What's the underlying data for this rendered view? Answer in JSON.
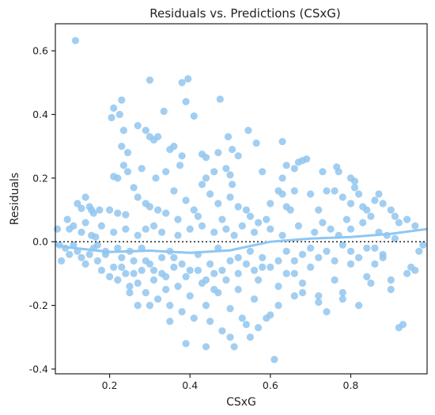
{
  "chart_data": {
    "type": "scatter",
    "title": "Residuals vs. Predictions (CSxG)",
    "xlabel": "CSxG",
    "ylabel": "Residuals",
    "xlim": [
      0.065,
      0.99
    ],
    "ylim": [
      -0.415,
      0.685
    ],
    "xticks": [
      0.2,
      0.4,
      0.6,
      0.8
    ],
    "yticks": [
      -0.4,
      -0.2,
      0.0,
      0.2,
      0.4,
      0.6
    ],
    "grid": false,
    "legend": "none",
    "reference_line": {
      "y": 0.0,
      "style": "dotted",
      "color": "#222222"
    },
    "point_color": "#92c5ef",
    "trend_color": "#8ec7f2",
    "trend": {
      "x": [
        0.065,
        0.1,
        0.2,
        0.3,
        0.4,
        0.5,
        0.6,
        0.7,
        0.8,
        0.9,
        0.99
      ],
      "y": [
        -0.01,
        -0.018,
        -0.032,
        -0.028,
        -0.035,
        -0.027,
        0.0,
        0.01,
        0.015,
        0.025,
        0.04
      ]
    },
    "points": [
      [
        0.115,
        0.632
      ],
      [
        0.3,
        0.508
      ],
      [
        0.395,
        0.512
      ],
      [
        0.38,
        0.5
      ],
      [
        0.475,
        0.448
      ],
      [
        0.39,
        0.44
      ],
      [
        0.21,
        0.42
      ],
      [
        0.23,
        0.445
      ],
      [
        0.225,
        0.4
      ],
      [
        0.205,
        0.39
      ],
      [
        0.335,
        0.41
      ],
      [
        0.41,
        0.395
      ],
      [
        0.27,
        0.365
      ],
      [
        0.235,
        0.35
      ],
      [
        0.29,
        0.35
      ],
      [
        0.545,
        0.35
      ],
      [
        0.495,
        0.33
      ],
      [
        0.3,
        0.33
      ],
      [
        0.31,
        0.32
      ],
      [
        0.32,
        0.33
      ],
      [
        0.23,
        0.3
      ],
      [
        0.36,
        0.3
      ],
      [
        0.35,
        0.29
      ],
      [
        0.47,
        0.28
      ],
      [
        0.505,
        0.29
      ],
      [
        0.565,
        0.31
      ],
      [
        0.63,
        0.315
      ],
      [
        0.245,
        0.28
      ],
      [
        0.38,
        0.27
      ],
      [
        0.43,
        0.275
      ],
      [
        0.44,
        0.265
      ],
      [
        0.52,
        0.27
      ],
      [
        0.235,
        0.24
      ],
      [
        0.245,
        0.22
      ],
      [
        0.22,
        0.2
      ],
      [
        0.21,
        0.205
      ],
      [
        0.28,
        0.23
      ],
      [
        0.315,
        0.2
      ],
      [
        0.34,
        0.22
      ],
      [
        0.375,
        0.24
      ],
      [
        0.43,
        0.18
      ],
      [
        0.44,
        0.2
      ],
      [
        0.46,
        0.22
      ],
      [
        0.49,
        0.23
      ],
      [
        0.5,
        0.21
      ],
      [
        0.505,
        0.18
      ],
      [
        0.58,
        0.22
      ],
      [
        0.64,
        0.24
      ],
      [
        0.66,
        0.23
      ],
      [
        0.68,
        0.255
      ],
      [
        0.69,
        0.26
      ],
      [
        0.67,
        0.25
      ],
      [
        0.63,
        0.2
      ],
      [
        0.73,
        0.22
      ],
      [
        0.765,
        0.235
      ],
      [
        0.77,
        0.22
      ],
      [
        0.8,
        0.2
      ],
      [
        0.81,
        0.19
      ],
      [
        0.15,
        0.11
      ],
      [
        0.155,
        0.1
      ],
      [
        0.16,
        0.09
      ],
      [
        0.12,
        0.12
      ],
      [
        0.13,
        0.105
      ],
      [
        0.14,
        0.14
      ],
      [
        0.095,
        0.07
      ],
      [
        0.1,
        0.04
      ],
      [
        0.11,
        0.05
      ],
      [
        0.13,
        0.03
      ],
      [
        0.155,
        0.02
      ],
      [
        0.165,
        0.015
      ],
      [
        0.175,
        0.1
      ],
      [
        0.2,
        0.1
      ],
      [
        0.22,
        0.09
      ],
      [
        0.24,
        0.085
      ],
      [
        0.26,
        0.17
      ],
      [
        0.27,
        0.14
      ],
      [
        0.29,
        0.12
      ],
      [
        0.3,
        0.11
      ],
      [
        0.32,
        0.1
      ],
      [
        0.34,
        0.09
      ],
      [
        0.36,
        0.16
      ],
      [
        0.37,
        0.07
      ],
      [
        0.39,
        0.13
      ],
      [
        0.41,
        0.1
      ],
      [
        0.42,
        0.08
      ],
      [
        0.45,
        0.15
      ],
      [
        0.47,
        0.12
      ],
      [
        0.48,
        0.07
      ],
      [
        0.5,
        0.14
      ],
      [
        0.52,
        0.11
      ],
      [
        0.54,
        0.1
      ],
      [
        0.55,
        0.08
      ],
      [
        0.57,
        0.06
      ],
      [
        0.59,
        0.07
      ],
      [
        0.6,
        0.12
      ],
      [
        0.62,
        0.16
      ],
      [
        0.63,
        0.15
      ],
      [
        0.64,
        0.11
      ],
      [
        0.65,
        0.1
      ],
      [
        0.66,
        0.16
      ],
      [
        0.7,
        0.15
      ],
      [
        0.72,
        0.1
      ],
      [
        0.74,
        0.16
      ],
      [
        0.76,
        0.16
      ],
      [
        0.78,
        0.14
      ],
      [
        0.79,
        0.07
      ],
      [
        0.8,
        0.12
      ],
      [
        0.81,
        0.17
      ],
      [
        0.82,
        0.15
      ],
      [
        0.83,
        0.11
      ],
      [
        0.84,
        0.1
      ],
      [
        0.85,
        0.08
      ],
      [
        0.86,
        0.13
      ],
      [
        0.87,
        0.15
      ],
      [
        0.88,
        0.12
      ],
      [
        0.9,
        0.1
      ],
      [
        0.91,
        0.08
      ],
      [
        0.92,
        0.06
      ],
      [
        0.94,
        0.07
      ],
      [
        0.96,
        0.05
      ],
      [
        0.07,
        0.04
      ],
      [
        0.075,
        -0.01
      ],
      [
        0.08,
        -0.06
      ],
      [
        0.09,
        -0.02
      ],
      [
        0.1,
        -0.04
      ],
      [
        0.11,
        -0.01
      ],
      [
        0.12,
        -0.03
      ],
      [
        0.13,
        -0.05
      ],
      [
        0.14,
        -0.07
      ],
      [
        0.15,
        -0.04
      ],
      [
        0.16,
        -0.02
      ],
      [
        0.17,
        -0.06
      ],
      [
        0.18,
        -0.09
      ],
      [
        0.19,
        -0.03
      ],
      [
        0.2,
        -0.11
      ],
      [
        0.21,
        -0.08
      ],
      [
        0.22,
        -0.12
      ],
      [
        0.23,
        -0.05
      ],
      [
        0.24,
        -0.1
      ],
      [
        0.25,
        -0.14
      ],
      [
        0.26,
        -0.06
      ],
      [
        0.27,
        -0.13
      ],
      [
        0.28,
        -0.09
      ],
      [
        0.29,
        -0.16
      ],
      [
        0.3,
        -0.07
      ],
      [
        0.31,
        -0.12
      ],
      [
        0.32,
        -0.18
      ],
      [
        0.33,
        -0.1
      ],
      [
        0.34,
        -0.15
      ],
      [
        0.35,
        -0.2
      ],
      [
        0.36,
        -0.08
      ],
      [
        0.37,
        -0.14
      ],
      [
        0.38,
        -0.22
      ],
      [
        0.39,
        -0.11
      ],
      [
        0.4,
        -0.17
      ],
      [
        0.41,
        -0.24
      ],
      [
        0.42,
        -0.09
      ],
      [
        0.43,
        -0.13
      ],
      [
        0.44,
        -0.2
      ],
      [
        0.45,
        -0.25
      ],
      [
        0.46,
        -0.1
      ],
      [
        0.47,
        -0.16
      ],
      [
        0.48,
        -0.28
      ],
      [
        0.49,
        -0.12
      ],
      [
        0.5,
        -0.21
      ],
      [
        0.51,
        -0.33
      ],
      [
        0.52,
        -0.15
      ],
      [
        0.53,
        -0.24
      ],
      [
        0.54,
        -0.26
      ],
      [
        0.55,
        -0.3
      ],
      [
        0.56,
        -0.18
      ],
      [
        0.57,
        -0.12
      ],
      [
        0.58,
        -0.08
      ],
      [
        0.6,
        -0.23
      ],
      [
        0.61,
        -0.37
      ],
      [
        0.62,
        -0.14
      ],
      [
        0.64,
        -0.1
      ],
      [
        0.66,
        -0.06
      ],
      [
        0.68,
        -0.13
      ],
      [
        0.7,
        -0.08
      ],
      [
        0.72,
        -0.17
      ],
      [
        0.74,
        -0.22
      ],
      [
        0.76,
        -0.12
      ],
      [
        0.78,
        -0.18
      ],
      [
        0.8,
        -0.07
      ],
      [
        0.82,
        -0.2
      ],
      [
        0.84,
        -0.11
      ],
      [
        0.86,
        -0.02
      ],
      [
        0.88,
        -0.05
      ],
      [
        0.9,
        -0.12
      ],
      [
        0.92,
        -0.27
      ],
      [
        0.93,
        -0.26
      ],
      [
        0.95,
        -0.08
      ],
      [
        0.97,
        -0.03
      ],
      [
        0.98,
        -0.01
      ],
      [
        0.39,
        -0.32
      ],
      [
        0.44,
        -0.33
      ],
      [
        0.5,
        -0.3
      ],
      [
        0.57,
        -0.27
      ],
      [
        0.59,
        -0.24
      ],
      [
        0.3,
        -0.2
      ],
      [
        0.35,
        -0.25
      ],
      [
        0.25,
        -0.16
      ],
      [
        0.27,
        -0.2
      ],
      [
        0.62,
        -0.2
      ],
      [
        0.66,
        -0.17
      ],
      [
        0.45,
        -0.07
      ],
      [
        0.47,
        -0.02
      ],
      [
        0.52,
        -0.05
      ],
      [
        0.55,
        -0.03
      ],
      [
        0.35,
        -0.03
      ],
      [
        0.33,
        -0.05
      ],
      [
        0.28,
        -0.02
      ],
      [
        0.27,
        0.02
      ],
      [
        0.29,
        0.04
      ],
      [
        0.31,
        0.05
      ],
      [
        0.33,
        0.03
      ],
      [
        0.37,
        0.02
      ],
      [
        0.4,
        0.04
      ],
      [
        0.43,
        0.05
      ],
      [
        0.46,
        0.03
      ],
      [
        0.49,
        0.04
      ],
      [
        0.51,
        0.02
      ],
      [
        0.53,
        0.05
      ],
      [
        0.56,
        0.03
      ],
      [
        0.6,
        0.04
      ],
      [
        0.63,
        0.02
      ],
      [
        0.67,
        0.05
      ],
      [
        0.71,
        0.03
      ],
      [
        0.73,
        0.06
      ],
      [
        0.75,
        0.04
      ],
      [
        0.77,
        0.02
      ],
      [
        0.8,
        0.04
      ],
      [
        0.83,
        0.06
      ],
      [
        0.87,
        0.03
      ],
      [
        0.89,
        0.02
      ],
      [
        0.91,
        0.01
      ],
      [
        0.14,
        0.06
      ],
      [
        0.18,
        0.05
      ],
      [
        0.21,
        0.03
      ],
      [
        0.24,
        0.04
      ],
      [
        0.17,
        -0.01
      ],
      [
        0.19,
        -0.04
      ],
      [
        0.22,
        -0.02
      ],
      [
        0.25,
        -0.03
      ],
      [
        0.23,
        -0.08
      ],
      [
        0.26,
        -0.1
      ],
      [
        0.29,
        -0.06
      ],
      [
        0.31,
        -0.09
      ],
      [
        0.34,
        -0.11
      ],
      [
        0.36,
        -0.05
      ],
      [
        0.38,
        -0.07
      ],
      [
        0.4,
        -0.09
      ],
      [
        0.42,
        -0.04
      ],
      [
        0.44,
        -0.12
      ],
      [
        0.46,
        -0.15
      ],
      [
        0.48,
        -0.09
      ],
      [
        0.5,
        -0.06
      ],
      [
        0.52,
        -0.1
      ],
      [
        0.54,
        -0.07
      ],
      [
        0.56,
        -0.09
      ],
      [
        0.58,
        -0.05
      ],
      [
        0.6,
        -0.08
      ],
      [
        0.62,
        -0.06
      ],
      [
        0.64,
        -0.03
      ],
      [
        0.66,
        -0.1
      ],
      [
        0.68,
        -0.04
      ],
      [
        0.7,
        -0.02
      ],
      [
        0.72,
        -0.05
      ],
      [
        0.74,
        -0.03
      ],
      [
        0.76,
        -0.06
      ],
      [
        0.78,
        -0.01
      ],
      [
        0.8,
        -0.03
      ],
      [
        0.82,
        -0.05
      ],
      [
        0.84,
        -0.02
      ],
      [
        0.86,
        -0.07
      ],
      [
        0.88,
        -0.04
      ],
      [
        0.96,
        -0.09
      ],
      [
        0.94,
        -0.1
      ],
      [
        0.9,
        -0.15
      ],
      [
        0.85,
        -0.13
      ],
      [
        0.78,
        -0.16
      ],
      [
        0.72,
        -0.19
      ],
      [
        0.68,
        -0.16
      ]
    ]
  }
}
